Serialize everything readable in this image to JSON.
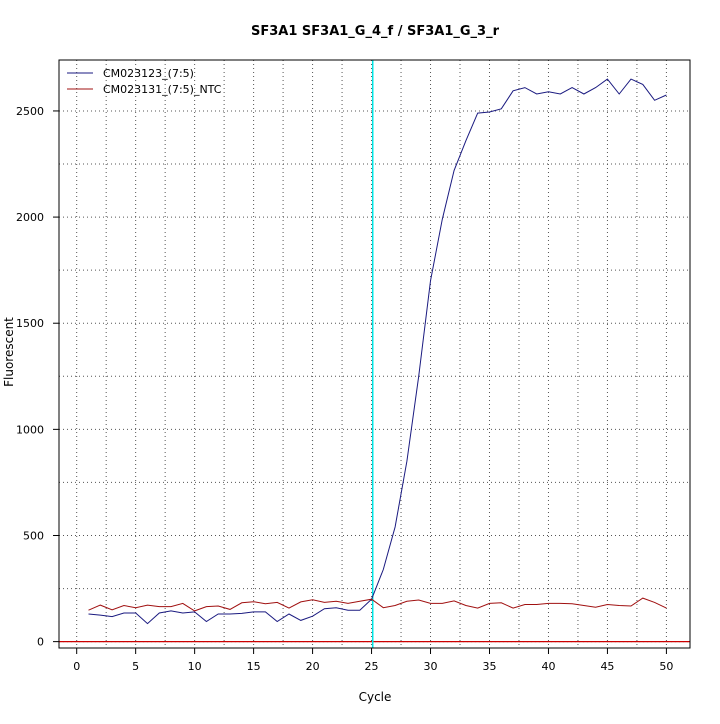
{
  "chart_data": {
    "type": "line",
    "title": "SF3A1  SF3A1_G_4_f / SF3A1_G_3_r",
    "xlabel": "Cycle",
    "ylabel": "Fluorescent",
    "xlim": [
      -1.5,
      52
    ],
    "ylim": [
      -30,
      2740
    ],
    "x_ticks": [
      0,
      5,
      10,
      15,
      20,
      25,
      30,
      35,
      40,
      45,
      50
    ],
    "y_ticks": [
      0,
      500,
      1000,
      1500,
      2000,
      2500
    ],
    "x_minor_grid": [
      2.5,
      7.5,
      12.5,
      17.5,
      22.5,
      27.5,
      32.5,
      37.5,
      42.5,
      47.5
    ],
    "y_minor_grid": [
      250,
      750,
      1250,
      1750,
      2250
    ],
    "grid": true,
    "legend_position": "top-left",
    "threshold_cycle": 25.1,
    "threshold_color": "#00e5e5",
    "baseline": 0,
    "baseline_color": "#cc0000",
    "x": [
      1,
      2,
      3,
      4,
      5,
      6,
      7,
      8,
      9,
      10,
      11,
      12,
      13,
      14,
      15,
      16,
      17,
      18,
      19,
      20,
      21,
      22,
      23,
      24,
      25,
      26,
      27,
      28,
      29,
      30,
      31,
      32,
      33,
      34,
      35,
      36,
      37,
      38,
      39,
      40,
      41,
      42,
      43,
      44,
      45,
      46,
      47,
      48,
      49,
      50
    ],
    "series": [
      {
        "name": "CM023123_(7:5)",
        "color": "#1a1a80",
        "values": [
          130,
          125,
          118,
          135,
          135,
          85,
          135,
          145,
          135,
          140,
          95,
          130,
          130,
          133,
          140,
          140,
          95,
          130,
          100,
          120,
          155,
          160,
          148,
          148,
          200,
          340,
          540,
          850,
          1250,
          1700,
          1990,
          2220,
          2360,
          2490,
          2495,
          2510,
          2595,
          2610,
          2580,
          2590,
          2580,
          2610,
          2580,
          2610,
          2650,
          2580,
          2650,
          2625,
          2550,
          2575
        ]
      },
      {
        "name": "CM023131_(7:5)_NTC",
        "color": "#a01010",
        "values": [
          148,
          172,
          150,
          170,
          160,
          172,
          165,
          165,
          180,
          145,
          165,
          168,
          152,
          183,
          188,
          178,
          185,
          158,
          187,
          197,
          185,
          190,
          180,
          190,
          200,
          160,
          170,
          190,
          196,
          180,
          180,
          192,
          170,
          158,
          180,
          183,
          158,
          175,
          175,
          180,
          180,
          178,
          170,
          162,
          175,
          170,
          168,
          205,
          185,
          158
        ]
      }
    ]
  }
}
